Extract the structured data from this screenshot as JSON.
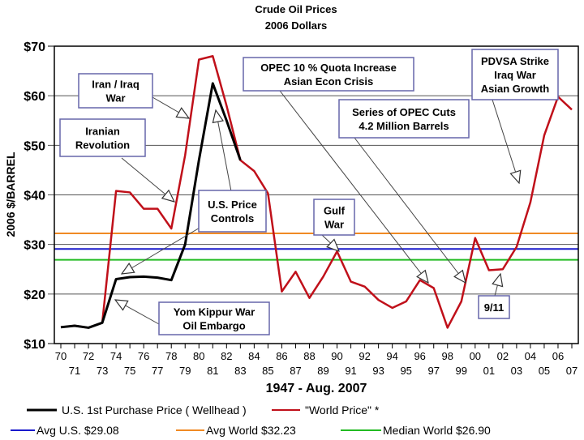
{
  "chart_data": {
    "type": "line",
    "title": "Crude Oil Prices",
    "subtitle": "2006 Dollars",
    "xlabel": "1947 - Aug. 2007",
    "ylabel": "2006 $/BARREL",
    "ylim": [
      10,
      70
    ],
    "yticks": [
      70,
      60,
      50,
      40,
      30,
      20,
      10
    ],
    "ytick_labels": [
      "$70",
      "$60",
      "$50",
      "$40",
      "$30",
      "$20",
      "$10"
    ],
    "grid": true,
    "x": [
      1970,
      1971,
      1972,
      1973,
      1974,
      1975,
      1976,
      1977,
      1978,
      1979,
      1980,
      1981,
      1982,
      1983,
      1984,
      1985,
      1986,
      1987,
      1988,
      1989,
      1990,
      1991,
      1992,
      1993,
      1994,
      1995,
      1996,
      1997,
      1998,
      1999,
      2000,
      2001,
      2002,
      2003,
      2004,
      2005,
      2006,
      2007
    ],
    "xtick_labels": [
      "70",
      "71",
      "72",
      "73",
      "74",
      "75",
      "76",
      "77",
      "78",
      "79",
      "80",
      "81",
      "82",
      "83",
      "84",
      "85",
      "86",
      "87",
      "88",
      "89",
      "90",
      "91",
      "92",
      "93",
      "94",
      "95",
      "96",
      "97",
      "98",
      "99",
      "00",
      "01",
      "02",
      "03",
      "04",
      "05",
      "06",
      "07"
    ],
    "series": [
      {
        "name": "\"World Price\" *",
        "color": "#c0101a",
        "values": [
          13.3,
          13.6,
          13.2,
          14.2,
          40.8,
          40.5,
          37.2,
          37.2,
          33.2,
          48.0,
          67.3,
          68.0,
          58.0,
          47.0,
          44.8,
          40.3,
          20.5,
          24.5,
          19.2,
          23.5,
          28.6,
          22.5,
          21.5,
          18.8,
          17.2,
          18.5,
          22.8,
          21.2,
          13.2,
          18.5,
          31.3,
          24.8,
          25.0,
          29.5,
          38.5,
          52.0,
          59.8,
          57.2
        ]
      },
      {
        "name": "U.S. 1st Purchase Price ( Wellhead )",
        "color": "#000000",
        "values": [
          13.3,
          13.6,
          13.2,
          14.2,
          23.0,
          23.4,
          23.5,
          23.3,
          22.8,
          30.0,
          47.0,
          62.5,
          55.0,
          47.0,
          null,
          null,
          null,
          null,
          null,
          null,
          null,
          null,
          null,
          null,
          null,
          null,
          null,
          null,
          null,
          null,
          null,
          null,
          null,
          null,
          null,
          null,
          null,
          null
        ]
      }
    ],
    "reference_lines": [
      {
        "name": "Avg U.S. $29.08",
        "value": 29.08,
        "color": "#1a1acc"
      },
      {
        "name": "Avg World $32.23",
        "value": 32.23,
        "color": "#f08a24"
      },
      {
        "name": "Median World  $26.90",
        "value": 26.9,
        "color": "#22bb22"
      }
    ],
    "annotations": [
      {
        "id": "iran-iraq",
        "lines": [
          "Iran / Iraq",
          "War"
        ]
      },
      {
        "id": "iranian-rev",
        "lines": [
          "Iranian",
          "Revolution"
        ]
      },
      {
        "id": "us-price",
        "lines": [
          "U.S. Price",
          "Controls"
        ]
      },
      {
        "id": "yom-kippur",
        "lines": [
          "Yom Kippur War",
          "Oil Embargo"
        ]
      },
      {
        "id": "opec-quota",
        "lines": [
          "OPEC 10 % Quota Increase",
          "Asian Econ Crisis"
        ]
      },
      {
        "id": "gulf-war",
        "lines": [
          "Gulf",
          "War"
        ]
      },
      {
        "id": "opec-cuts",
        "lines": [
          "Series of OPEC Cuts",
          "4.2 Million Barrels"
        ]
      },
      {
        "id": "pdvsa",
        "lines": [
          "PDVSA Strike",
          "Iraq War",
          "Asian Growth"
        ]
      },
      {
        "id": "nine-eleven",
        "lines": [
          "9/11"
        ]
      }
    ],
    "legend_placement": "bottom"
  }
}
